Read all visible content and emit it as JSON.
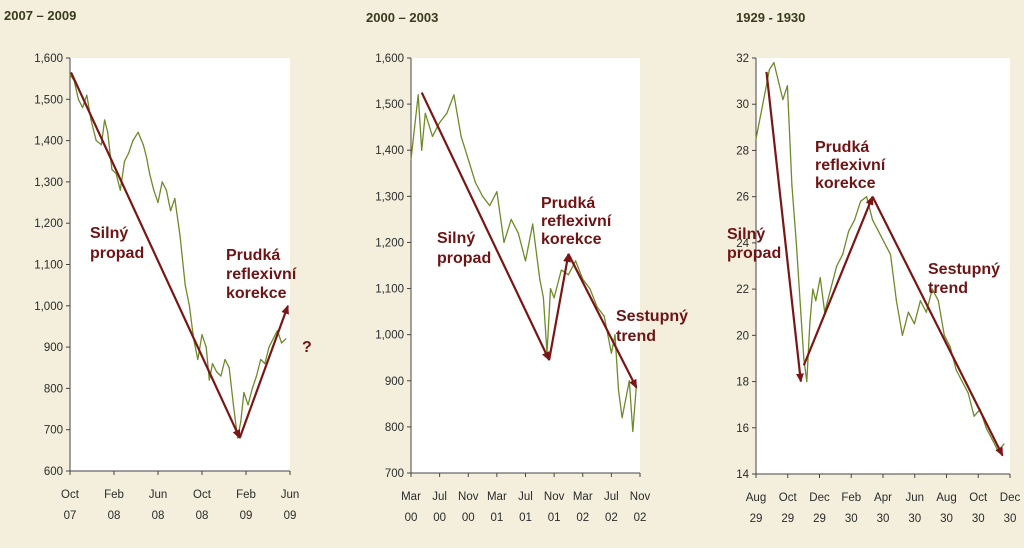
{
  "colors": {
    "background": "#f3efdc",
    "plot_background": "#ffffff",
    "price_line": "#6f8a2a",
    "trend_arrow": "#7a1616",
    "annotation_text": "#6e1414",
    "title_text": "#3a3a1c"
  },
  "chart_data": [
    {
      "type": "line",
      "title": "2007 – 2009",
      "xlabel": "",
      "ylabel": "",
      "x_ticks": [
        {
          "top": "Oct",
          "bottom": "07"
        },
        {
          "top": "Feb",
          "bottom": "08"
        },
        {
          "top": "Jun",
          "bottom": "08"
        },
        {
          "top": "Oct",
          "bottom": "08"
        },
        {
          "top": "Feb",
          "bottom": "09"
        },
        {
          "top": "Jun",
          "bottom": "09"
        }
      ],
      "xlim": [
        0,
        21
      ],
      "ylim": [
        600,
        1600
      ],
      "y_ticks": [
        "600",
        "700",
        "800",
        "900",
        "1,000",
        "1,100",
        "1,200",
        "1,300",
        "1,400",
        "1,500",
        "1,600"
      ],
      "series": [
        {
          "x": [
            0,
            0.4,
            0.8,
            1.2,
            1.6,
            2.0,
            2.5,
            3.0,
            3.3,
            3.6,
            4.0,
            4.4,
            4.8,
            5.2,
            5.6,
            6.0,
            6.5,
            7.0,
            7.3,
            7.6,
            8.0,
            8.4,
            8.8,
            9.2,
            9.6,
            10.0,
            10.5,
            11.0,
            11.4,
            11.8,
            12.2,
            12.6,
            13.0,
            13.3,
            13.6,
            14.0,
            14.4,
            14.8,
            15.2,
            15.6,
            16.0,
            16.3,
            16.6,
            17.0,
            17.4,
            17.8,
            18.2,
            18.6,
            19.0,
            19.4,
            19.8,
            20.2,
            20.6
          ],
          "values": [
            1560,
            1545,
            1500,
            1480,
            1510,
            1450,
            1400,
            1390,
            1450,
            1420,
            1330,
            1320,
            1280,
            1350,
            1370,
            1400,
            1420,
            1390,
            1360,
            1320,
            1280,
            1250,
            1300,
            1280,
            1230,
            1260,
            1170,
            1050,
            1000,
            920,
            870,
            930,
            900,
            820,
            860,
            840,
            830,
            870,
            850,
            760,
            680,
            720,
            790,
            760,
            800,
            830,
            870,
            860,
            900,
            920,
            940,
            910,
            920
          ]
        }
      ],
      "annotations": [
        {
          "lines": [
            "Silný",
            "propad"
          ]
        },
        {
          "lines": [
            "Prudká",
            "reflexivní",
            "korekce"
          ]
        },
        {
          "lines": [
            "?"
          ]
        }
      ],
      "arrows": [
        {
          "from": [
            0.1,
            1565
          ],
          "to": [
            16.2,
            680
          ]
        },
        {
          "from": [
            16.2,
            680
          ],
          "to": [
            20.8,
            1000
          ]
        }
      ]
    },
    {
      "type": "line",
      "title": "2000 – 2003",
      "xlabel": "",
      "ylabel": "",
      "x_ticks": [
        {
          "top": "Mar",
          "bottom": "00"
        },
        {
          "top": "Jul",
          "bottom": "00"
        },
        {
          "top": "Nov",
          "bottom": "00"
        },
        {
          "top": "Mar",
          "bottom": "01"
        },
        {
          "top": "Jul",
          "bottom": "01"
        },
        {
          "top": "Nov",
          "bottom": "01"
        },
        {
          "top": "Mar",
          "bottom": "02"
        },
        {
          "top": "Jul",
          "bottom": "02"
        },
        {
          "top": "Nov",
          "bottom": "02"
        }
      ],
      "xlim": [
        0,
        32
      ],
      "ylim": [
        700,
        1600
      ],
      "y_ticks": [
        "700",
        "800",
        "900",
        "1,000",
        "1,100",
        "1,200",
        "1,300",
        "1,400",
        "1,500",
        "1,600"
      ],
      "series": [
        {
          "x": [
            0,
            0.5,
            1,
            1.5,
            2,
            3,
            4,
            5,
            6,
            7,
            8,
            9,
            10,
            11,
            12,
            13,
            14,
            15,
            16,
            17,
            18,
            18.5,
            19,
            19.5,
            20,
            21,
            22,
            23,
            24,
            25,
            26,
            27,
            28,
            28.5,
            29,
            29.5,
            30,
            30.5,
            31,
            31.5
          ],
          "values": [
            1380,
            1450,
            1520,
            1400,
            1480,
            1430,
            1460,
            1480,
            1520,
            1430,
            1380,
            1330,
            1300,
            1280,
            1310,
            1200,
            1250,
            1220,
            1160,
            1240,
            1120,
            1080,
            960,
            1100,
            1080,
            1140,
            1130,
            1160,
            1120,
            1100,
            1060,
            1040,
            960,
            1000,
            880,
            820,
            860,
            900,
            790,
            890
          ]
        }
      ],
      "annotations": [
        {
          "lines": [
            "Silný",
            "propad"
          ]
        },
        {
          "lines": [
            "Prudká",
            "reflexivní",
            "korekce"
          ]
        },
        {
          "lines": [
            "Sestupný",
            "trend"
          ]
        }
      ],
      "arrows": [
        {
          "from": [
            1.5,
            1525
          ],
          "to": [
            19.3,
            945
          ]
        },
        {
          "from": [
            19.3,
            945
          ],
          "to": [
            22.0,
            1175
          ]
        },
        {
          "from": [
            22.0,
            1175
          ],
          "to": [
            31.5,
            885
          ]
        }
      ]
    },
    {
      "type": "line",
      "title": "1929 - 1930",
      "xlabel": "",
      "ylabel": "",
      "x_ticks": [
        {
          "top": "Aug",
          "bottom": "29"
        },
        {
          "top": "Oct",
          "bottom": "29"
        },
        {
          "top": "Dec",
          "bottom": "29"
        },
        {
          "top": "Feb",
          "bottom": "30"
        },
        {
          "top": "Apr",
          "bottom": "30"
        },
        {
          "top": "Jun",
          "bottom": "30"
        },
        {
          "top": "Aug",
          "bottom": "30"
        },
        {
          "top": "Oct",
          "bottom": "30"
        },
        {
          "top": "Dec",
          "bottom": "30"
        }
      ],
      "xlim": [
        0,
        17
      ],
      "ylim": [
        14,
        32
      ],
      "y_ticks": [
        "14",
        "16",
        "18",
        "20",
        "22",
        "24",
        "26",
        "28",
        "30",
        "32"
      ],
      "series": [
        {
          "x": [
            0,
            0.3,
            0.6,
            0.9,
            1.2,
            1.5,
            1.8,
            2.1,
            2.4,
            2.7,
            3.0,
            3.2,
            3.4,
            3.6,
            3.8,
            4.0,
            4.3,
            4.6,
            5.0,
            5.4,
            5.8,
            6.2,
            6.6,
            7.0,
            7.4,
            7.8,
            8.2,
            8.6,
            9.0,
            9.4,
            9.8,
            10.2,
            10.6,
            11.0,
            11.4,
            11.8,
            12.2,
            12.6,
            13.0,
            13.4,
            13.8,
            14.2,
            14.6,
            15.0,
            15.4,
            15.8,
            16.2,
            16.6
          ],
          "values": [
            28.5,
            29.5,
            30.5,
            31.5,
            31.8,
            31.0,
            30.2,
            30.8,
            26.5,
            24.0,
            21.0,
            19.0,
            18.0,
            20.5,
            22.0,
            21.5,
            22.5,
            21.0,
            22.0,
            23.0,
            23.5,
            24.5,
            25.0,
            25.8,
            26.0,
            25.0,
            24.5,
            24.0,
            23.5,
            21.5,
            20.0,
            21.0,
            20.5,
            21.5,
            21.0,
            22.0,
            21.5,
            20.0,
            19.5,
            18.5,
            18.0,
            17.5,
            16.5,
            16.8,
            16.0,
            15.5,
            15.0,
            15.3
          ]
        }
      ],
      "annotations": [
        {
          "lines": [
            "Silný",
            "propad"
          ]
        },
        {
          "lines": [
            "Prudká",
            "reflexivní",
            "korekce"
          ]
        },
        {
          "lines": [
            "Sestupný",
            "trend"
          ]
        }
      ],
      "arrows": [
        {
          "from": [
            0.7,
            31.4
          ],
          "to": [
            3.0,
            18.0
          ]
        },
        {
          "from": [
            3.2,
            18.7
          ],
          "to": [
            7.8,
            26.0
          ]
        },
        {
          "from": [
            7.8,
            26.0
          ],
          "to": [
            16.5,
            14.8
          ]
        }
      ]
    }
  ]
}
